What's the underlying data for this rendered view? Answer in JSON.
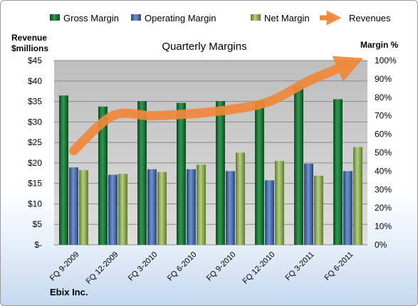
{
  "chart_data": {
    "type": "bar",
    "title": "Quarterly Margins",
    "categories": [
      "FQ 9-2009",
      "FQ 12-2009",
      "FQ 3-2010",
      "FQ 6-2010",
      "FQ 9-2010",
      "FQ 12-2010",
      "FQ 3-2011",
      "FQ 6-2011"
    ],
    "series": [
      {
        "name": "Gross Margin",
        "axis": "right",
        "values": [
          81,
          75,
          78,
          77,
          78,
          78,
          86,
          79
        ],
        "color": "#1f7a3a"
      },
      {
        "name": "Operating Margin",
        "axis": "right",
        "values": [
          42,
          38,
          41,
          41,
          40,
          35,
          44,
          40
        ],
        "color": "#4a6fb3"
      },
      {
        "name": "Net Margin",
        "axis": "right",
        "values": [
          40.5,
          38.5,
          39.5,
          43.5,
          50,
          45.5,
          37.5,
          53
        ],
        "color": "#97b561"
      },
      {
        "name": "Revenues",
        "type": "line",
        "axis": "left",
        "values": [
          23,
          31.5,
          31.5,
          32,
          33,
          35,
          40,
          44
        ],
        "color": "#f0883a"
      }
    ],
    "left_axis": {
      "label_line1": "Revenue",
      "label_line2": "$millions",
      "ticks": [
        "$-",
        "$5",
        "$10",
        "$15",
        "$20",
        "$25",
        "$30",
        "$35",
        "$40",
        "$45"
      ],
      "ylim": [
        0,
        45
      ]
    },
    "right_axis": {
      "label": "Margin %",
      "ticks": [
        "0%",
        "10%",
        "20%",
        "30%",
        "40%",
        "50%",
        "60%",
        "70%",
        "80%",
        "90%",
        "100%"
      ],
      "ylim": [
        0,
        100
      ]
    },
    "grid": true,
    "legend_position": "top"
  },
  "company": "Ebix Inc."
}
